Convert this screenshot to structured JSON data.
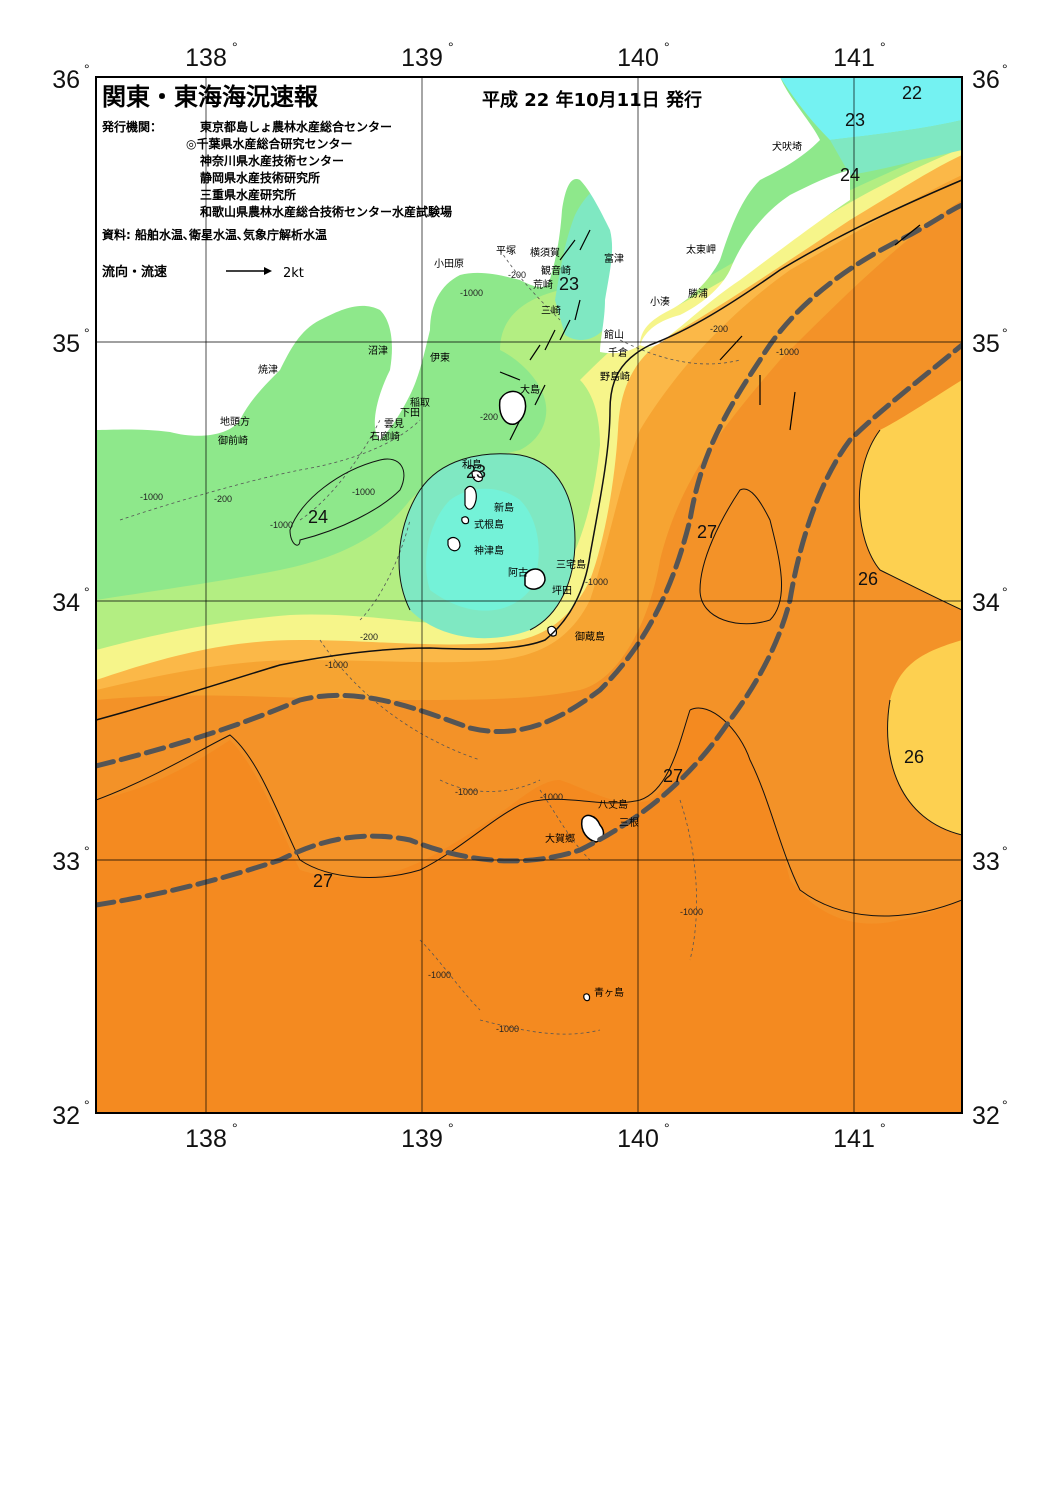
{
  "header": {
    "title": "関東・東海海況速報",
    "date": "平成 22 年10月11日 発行",
    "publisher_label": "発行機関：",
    "publishers": [
      "東京都島しょ農林水産総合センター",
      "◎千葉県水産総合研究センター",
      "神奈川県水産技術センター",
      "静岡県水産技術研究所",
      "三重県水産研究所",
      "和歌山県農林水産総合技術センター水産試験場"
    ],
    "sources": "資料: 船舶水温､衛星水温､気象庁解析水温",
    "legend_label": "流向・流速",
    "legend_value": "2kt"
  },
  "axes": {
    "lon_labels": [
      "138",
      "139",
      "140",
      "141"
    ],
    "lat_labels": [
      "36",
      "35",
      "34",
      "33",
      "32"
    ],
    "degree_symbol": "°"
  },
  "colors": {
    "t22": "#74f2f2",
    "t23": "#7fe8c2",
    "t23b": "#8ef5b4",
    "t24": "#8ee88b",
    "t24b": "#b3ee82",
    "t25": "#f6f58a",
    "t26": "#fdd050",
    "t26b": "#fbb848",
    "t27": "#f6a432",
    "t27b": "#f39228",
    "t28": "#e9741e",
    "kuroshio": "#555555"
  },
  "isotherm_labels": [
    "22",
    "23",
    "24",
    "23",
    "23",
    "24",
    "27",
    "26",
    "27",
    "26",
    "27"
  ],
  "depth_labels": [
    "-200",
    "-1000"
  ],
  "places": [
    "犬吠埼",
    "太東岬",
    "勝浦",
    "小湊",
    "富津",
    "館山",
    "千倉",
    "野島崎",
    "横須賀",
    "観音崎",
    "平塚",
    "荒崎",
    "三崎",
    "小田原",
    "沼津",
    "伊東",
    "稲取",
    "下田",
    "雲見",
    "石廊崎",
    "焼津",
    "地頭方",
    "御前崎",
    "大島",
    "利島",
    "新島",
    "式根島",
    "神津島",
    "三宅島",
    "阿古",
    "坪田",
    "御蔵島",
    "八丈島",
    "三根",
    "大賀郷",
    "青ヶ島"
  ]
}
